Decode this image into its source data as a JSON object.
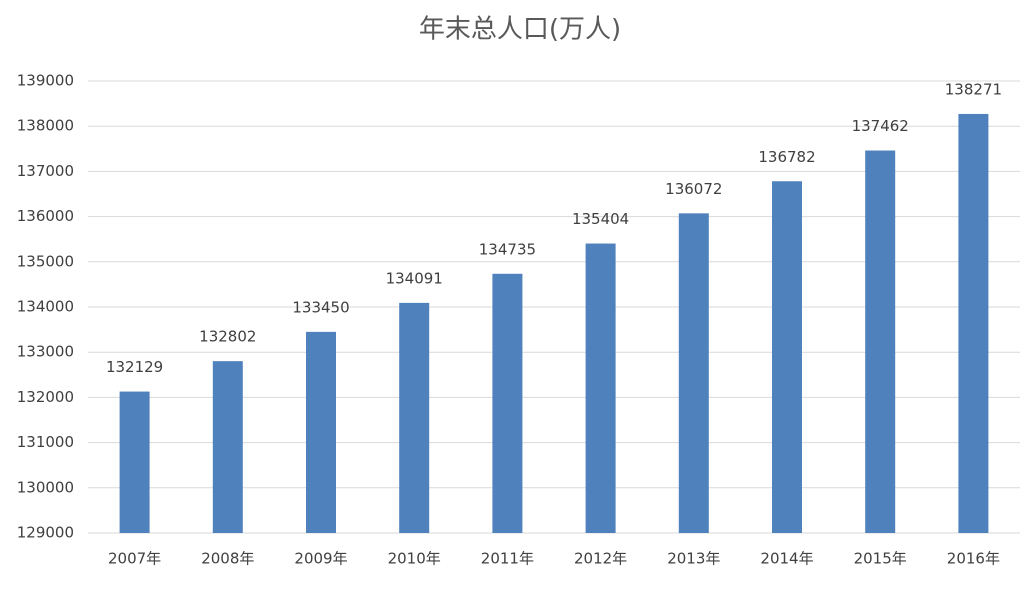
{
  "chart_data": {
    "type": "bar",
    "title": "年末总人口(万人)",
    "categories": [
      "2007年",
      "2008年",
      "2009年",
      "2010年",
      "2011年",
      "2012年",
      "2013年",
      "2014年",
      "2015年",
      "2016年"
    ],
    "values": [
      132129,
      132802,
      133450,
      134091,
      134735,
      135404,
      136072,
      136782,
      137462,
      138271
    ],
    "color": "#4f81bd",
    "ylim": [
      129000,
      139000
    ],
    "yticks": [
      129000,
      130000,
      131000,
      132000,
      133000,
      134000,
      135000,
      136000,
      137000,
      138000,
      139000
    ],
    "grid": true
  }
}
